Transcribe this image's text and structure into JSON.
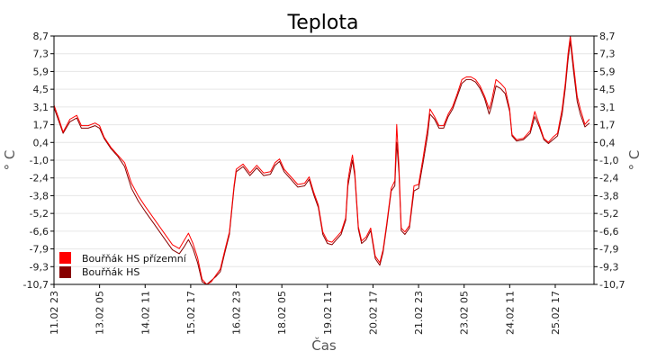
{
  "chart_data": {
    "type": "line",
    "title": "Teplota",
    "xlabel": "Čas",
    "ylabel": "° C",
    "ylim": [
      -10.7,
      8.7
    ],
    "yticks": [
      "8,7",
      "7,3",
      "5,9",
      "4,5",
      "3,1",
      "1,7",
      "0,4",
      "-1,0",
      "-2,4",
      "-3,8",
      "-5,2",
      "-6,6",
      "-7,9",
      "-9,3",
      "-10,7"
    ],
    "xticks": [
      "11.02 23",
      "13.02 05",
      "14.02 11",
      "15.02 17",
      "16.02 23",
      "18.02 05",
      "19.02 11",
      "20.02 17",
      "21.02 23",
      "23.02 05",
      "24.02 11",
      "25.02 17"
    ],
    "grid": true,
    "legend_position": "bottom-left",
    "series": [
      {
        "name": "Bouřňák HS přízemní",
        "color": "#ff0000",
        "values": [
          [
            0.0,
            3.3
          ],
          [
            0.1,
            2.3
          ],
          [
            0.2,
            1.2
          ],
          [
            0.35,
            2.2
          ],
          [
            0.5,
            2.5
          ],
          [
            0.6,
            1.7
          ],
          [
            0.75,
            1.7
          ],
          [
            0.9,
            1.9
          ],
          [
            1.0,
            1.7
          ],
          [
            1.1,
            0.8
          ],
          [
            1.25,
            0.0
          ],
          [
            1.4,
            -0.6
          ],
          [
            1.55,
            -1.2
          ],
          [
            1.7,
            -2.8
          ],
          [
            1.85,
            -3.8
          ],
          [
            2.0,
            -4.6
          ],
          [
            2.2,
            -5.6
          ],
          [
            2.4,
            -6.6
          ],
          [
            2.6,
            -7.6
          ],
          [
            2.75,
            -7.9
          ],
          [
            2.85,
            -7.3
          ],
          [
            2.95,
            -6.7
          ],
          [
            3.05,
            -7.5
          ],
          [
            3.15,
            -8.6
          ],
          [
            3.25,
            -10.3
          ],
          [
            3.35,
            -10.7
          ],
          [
            3.45,
            -10.5
          ],
          [
            3.55,
            -10.0
          ],
          [
            3.65,
            -9.5
          ],
          [
            3.75,
            -8.0
          ],
          [
            3.85,
            -6.6
          ],
          [
            3.95,
            -3.0
          ],
          [
            4.0,
            -1.7
          ],
          [
            4.15,
            -1.3
          ],
          [
            4.3,
            -2.0
          ],
          [
            4.45,
            -1.4
          ],
          [
            4.6,
            -2.0
          ],
          [
            4.75,
            -1.9
          ],
          [
            4.85,
            -1.2
          ],
          [
            4.95,
            -0.9
          ],
          [
            5.05,
            -1.7
          ],
          [
            5.2,
            -2.3
          ],
          [
            5.35,
            -2.9
          ],
          [
            5.5,
            -2.8
          ],
          [
            5.6,
            -2.3
          ],
          [
            5.7,
            -3.5
          ],
          [
            5.8,
            -4.5
          ],
          [
            5.9,
            -6.6
          ],
          [
            6.0,
            -7.3
          ],
          [
            6.1,
            -7.4
          ],
          [
            6.2,
            -7.0
          ],
          [
            6.3,
            -6.6
          ],
          [
            6.4,
            -5.5
          ],
          [
            6.45,
            -2.6
          ],
          [
            6.5,
            -1.5
          ],
          [
            6.55,
            -0.6
          ],
          [
            6.6,
            -1.9
          ],
          [
            6.68,
            -6.2
          ],
          [
            6.75,
            -7.3
          ],
          [
            6.85,
            -7.0
          ],
          [
            6.95,
            -6.3
          ],
          [
            7.05,
            -8.5
          ],
          [
            7.15,
            -9.0
          ],
          [
            7.22,
            -8.0
          ],
          [
            7.3,
            -6.0
          ],
          [
            7.4,
            -3.2
          ],
          [
            7.48,
            -2.6
          ],
          [
            7.52,
            1.8
          ],
          [
            7.57,
            -1.5
          ],
          [
            7.62,
            -6.3
          ],
          [
            7.7,
            -6.6
          ],
          [
            7.8,
            -6.1
          ],
          [
            7.9,
            -3.0
          ],
          [
            8.0,
            -2.9
          ],
          [
            8.1,
            -0.8
          ],
          [
            8.2,
            1.5
          ],
          [
            8.25,
            3.0
          ],
          [
            8.35,
            2.4
          ],
          [
            8.45,
            1.7
          ],
          [
            8.55,
            1.7
          ],
          [
            8.65,
            2.6
          ],
          [
            8.75,
            3.2
          ],
          [
            8.85,
            4.2
          ],
          [
            8.95,
            5.3
          ],
          [
            9.05,
            5.5
          ],
          [
            9.15,
            5.5
          ],
          [
            9.25,
            5.3
          ],
          [
            9.35,
            4.8
          ],
          [
            9.45,
            4.0
          ],
          [
            9.55,
            3.0
          ],
          [
            9.6,
            3.6
          ],
          [
            9.7,
            5.3
          ],
          [
            9.8,
            5.0
          ],
          [
            9.9,
            4.6
          ],
          [
            10.0,
            3.0
          ],
          [
            10.05,
            1.0
          ],
          [
            10.15,
            0.6
          ],
          [
            10.3,
            0.7
          ],
          [
            10.45,
            1.3
          ],
          [
            10.55,
            2.8
          ],
          [
            10.65,
            1.8
          ],
          [
            10.75,
            0.7
          ],
          [
            10.85,
            0.4
          ],
          [
            10.95,
            0.8
          ],
          [
            11.05,
            1.1
          ],
          [
            11.15,
            3.0
          ],
          [
            11.22,
            5.0
          ],
          [
            11.28,
            7.3
          ],
          [
            11.33,
            8.7
          ],
          [
            11.4,
            6.5
          ],
          [
            11.48,
            4.0
          ],
          [
            11.55,
            3.0
          ],
          [
            11.65,
            1.8
          ],
          [
            11.75,
            2.2
          ]
        ]
      },
      {
        "name": "Bouřňák HS",
        "color": "#880000",
        "values": [
          [
            0.0,
            3.1
          ],
          [
            0.1,
            2.1
          ],
          [
            0.2,
            1.1
          ],
          [
            0.35,
            2.0
          ],
          [
            0.5,
            2.3
          ],
          [
            0.6,
            1.5
          ],
          [
            0.75,
            1.5
          ],
          [
            0.9,
            1.7
          ],
          [
            1.0,
            1.5
          ],
          [
            1.1,
            0.7
          ],
          [
            1.25,
            -0.1
          ],
          [
            1.4,
            -0.7
          ],
          [
            1.55,
            -1.5
          ],
          [
            1.7,
            -3.2
          ],
          [
            1.85,
            -4.2
          ],
          [
            2.0,
            -5.0
          ],
          [
            2.2,
            -6.0
          ],
          [
            2.4,
            -7.0
          ],
          [
            2.6,
            -8.0
          ],
          [
            2.75,
            -8.3
          ],
          [
            2.85,
            -7.8
          ],
          [
            2.95,
            -7.2
          ],
          [
            3.05,
            -7.9
          ],
          [
            3.15,
            -9.0
          ],
          [
            3.25,
            -10.5
          ],
          [
            3.35,
            -10.7
          ],
          [
            3.45,
            -10.4
          ],
          [
            3.55,
            -10.1
          ],
          [
            3.65,
            -9.7
          ],
          [
            3.75,
            -8.2
          ],
          [
            3.85,
            -6.8
          ],
          [
            3.95,
            -3.2
          ],
          [
            4.0,
            -1.9
          ],
          [
            4.15,
            -1.5
          ],
          [
            4.3,
            -2.2
          ],
          [
            4.45,
            -1.6
          ],
          [
            4.6,
            -2.2
          ],
          [
            4.75,
            -2.1
          ],
          [
            4.85,
            -1.4
          ],
          [
            4.95,
            -1.1
          ],
          [
            5.05,
            -1.9
          ],
          [
            5.2,
            -2.5
          ],
          [
            5.35,
            -3.1
          ],
          [
            5.5,
            -3.0
          ],
          [
            5.6,
            -2.5
          ],
          [
            5.7,
            -3.7
          ],
          [
            5.8,
            -4.7
          ],
          [
            5.9,
            -6.8
          ],
          [
            6.0,
            -7.5
          ],
          [
            6.1,
            -7.6
          ],
          [
            6.2,
            -7.2
          ],
          [
            6.3,
            -6.8
          ],
          [
            6.4,
            -5.7
          ],
          [
            6.45,
            -3.0
          ],
          [
            6.5,
            -2.0
          ],
          [
            6.55,
            -1.0
          ],
          [
            6.6,
            -2.2
          ],
          [
            6.68,
            -6.4
          ],
          [
            6.75,
            -7.5
          ],
          [
            6.85,
            -7.2
          ],
          [
            6.95,
            -6.5
          ],
          [
            7.05,
            -8.7
          ],
          [
            7.15,
            -9.2
          ],
          [
            7.22,
            -8.2
          ],
          [
            7.3,
            -6.2
          ],
          [
            7.4,
            -3.4
          ],
          [
            7.48,
            -3.0
          ],
          [
            7.52,
            0.4
          ],
          [
            7.57,
            -2.0
          ],
          [
            7.62,
            -6.5
          ],
          [
            7.7,
            -6.8
          ],
          [
            7.8,
            -6.3
          ],
          [
            7.9,
            -3.4
          ],
          [
            8.0,
            -3.2
          ],
          [
            8.1,
            -1.2
          ],
          [
            8.2,
            1.0
          ],
          [
            8.25,
            2.6
          ],
          [
            8.35,
            2.2
          ],
          [
            8.45,
            1.5
          ],
          [
            8.55,
            1.5
          ],
          [
            8.65,
            2.4
          ],
          [
            8.75,
            3.0
          ],
          [
            8.85,
            4.0
          ],
          [
            8.95,
            5.0
          ],
          [
            9.05,
            5.3
          ],
          [
            9.15,
            5.3
          ],
          [
            9.25,
            5.1
          ],
          [
            9.35,
            4.6
          ],
          [
            9.45,
            3.8
          ],
          [
            9.55,
            2.6
          ],
          [
            9.6,
            3.2
          ],
          [
            9.7,
            4.8
          ],
          [
            9.8,
            4.6
          ],
          [
            9.9,
            4.2
          ],
          [
            10.0,
            2.8
          ],
          [
            10.05,
            0.9
          ],
          [
            10.15,
            0.5
          ],
          [
            10.3,
            0.6
          ],
          [
            10.45,
            1.1
          ],
          [
            10.55,
            2.4
          ],
          [
            10.65,
            1.6
          ],
          [
            10.75,
            0.6
          ],
          [
            10.85,
            0.3
          ],
          [
            10.95,
            0.6
          ],
          [
            11.05,
            0.9
          ],
          [
            11.15,
            2.6
          ],
          [
            11.22,
            4.6
          ],
          [
            11.28,
            6.8
          ],
          [
            11.33,
            8.3
          ],
          [
            11.4,
            6.0
          ],
          [
            11.48,
            3.6
          ],
          [
            11.55,
            2.6
          ],
          [
            11.65,
            1.6
          ],
          [
            11.75,
            1.9
          ]
        ]
      }
    ]
  }
}
